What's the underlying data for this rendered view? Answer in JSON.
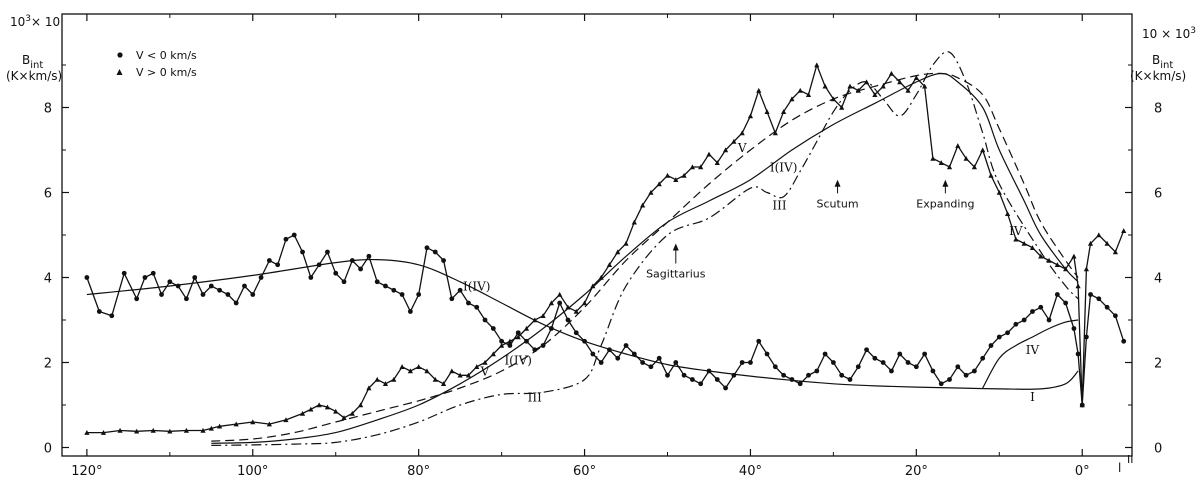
{
  "chart_data": {
    "type": "line",
    "title": "",
    "xlabel": "l",
    "xlabel_superscript": "II",
    "ylabel_left": {
      "scale": "10",
      "scale_exp": "3",
      "scale_suffix": "× 10",
      "quantity": "B",
      "quantity_sub": "int",
      "unit": "(K×km/s)"
    },
    "ylabel_right": {
      "scale": "10 × 10",
      "scale_exp": "3",
      "quantity": "B",
      "quantity_sub": "int",
      "unit": "(K×km/s)"
    },
    "xlim": [
      123,
      -6
    ],
    "ylim": [
      -0.2,
      10.2
    ],
    "x_ticks": [
      120,
      100,
      80,
      60,
      40,
      20,
      0
    ],
    "x_tick_labels": [
      "120°",
      "100°",
      "80°",
      "60°",
      "40°",
      "20°",
      "0°"
    ],
    "y_ticks": [
      0,
      2,
      4,
      6,
      8
    ],
    "y_tick_labels": [
      "0",
      "2",
      "4",
      "6",
      "8"
    ],
    "legend": [
      {
        "marker": "circle",
        "label": "V < 0  km/s"
      },
      {
        "marker": "triangle",
        "label": "V > 0  km/s"
      }
    ],
    "legend_position": "top-left",
    "series": [
      {
        "marker": "circle",
        "style": "solid-with-markers",
        "x": [
          120,
          118.5,
          117,
          115.5,
          114,
          113,
          112,
          111,
          110,
          109,
          108,
          107,
          106,
          105,
          104,
          103,
          102,
          101,
          100,
          99,
          98,
          97,
          96,
          95,
          94,
          93,
          92,
          91,
          90,
          89,
          88,
          87,
          86,
          85,
          84,
          83,
          82,
          81,
          80,
          79,
          78,
          77,
          76,
          75,
          74,
          73,
          72,
          71,
          70,
          69,
          68,
          67,
          66,
          65,
          64,
          63,
          62,
          61,
          60,
          59,
          58,
          57,
          56,
          55,
          54,
          53,
          52,
          51,
          50,
          49,
          48,
          47,
          46,
          45,
          44,
          43,
          42,
          41,
          40,
          39,
          38,
          37,
          36,
          35,
          34,
          33,
          32,
          31,
          30,
          29,
          28,
          27,
          26,
          25,
          24,
          23,
          22,
          21,
          20,
          19,
          18,
          17,
          16,
          15,
          14,
          13,
          12,
          11,
          10,
          9,
          8,
          7,
          6,
          5,
          4,
          3,
          2,
          1,
          0.5,
          0,
          -0.5,
          -1,
          -2,
          -3,
          -4,
          -5
        ],
        "y": [
          4.0,
          3.2,
          3.1,
          4.1,
          3.5,
          4.0,
          4.1,
          3.6,
          3.9,
          3.8,
          3.5,
          4.0,
          3.6,
          3.8,
          3.7,
          3.6,
          3.4,
          3.8,
          3.6,
          4.0,
          4.4,
          4.3,
          4.9,
          5.0,
          4.6,
          4.0,
          4.3,
          4.6,
          4.1,
          3.9,
          4.4,
          4.2,
          4.5,
          3.9,
          3.8,
          3.7,
          3.6,
          3.2,
          3.6,
          4.7,
          4.6,
          4.4,
          3.5,
          3.7,
          3.4,
          3.3,
          3.0,
          2.8,
          2.5,
          2.4,
          2.7,
          2.5,
          2.3,
          2.4,
          2.8,
          3.4,
          3.0,
          2.7,
          2.5,
          2.2,
          2.0,
          2.3,
          2.1,
          2.4,
          2.2,
          2.0,
          1.9,
          2.1,
          1.7,
          2.0,
          1.7,
          1.6,
          1.5,
          1.8,
          1.6,
          1.4,
          1.7,
          2.0,
          2.0,
          2.5,
          2.2,
          1.9,
          1.7,
          1.6,
          1.5,
          1.7,
          1.8,
          2.2,
          2.0,
          1.7,
          1.6,
          1.9,
          2.3,
          2.1,
          2.0,
          1.8,
          2.2,
          2.0,
          1.9,
          2.2,
          1.8,
          1.5,
          1.6,
          1.9,
          1.7,
          1.8,
          2.1,
          2.4,
          2.6,
          2.7,
          2.9,
          3.0,
          3.2,
          3.3,
          3.0,
          3.6,
          3.4,
          2.8,
          2.2,
          1.0,
          2.6,
          3.6,
          3.5,
          3.3,
          3.1,
          2.5
        ]
      },
      {
        "marker": "triangle",
        "style": "solid-with-markers",
        "x": [
          120,
          118,
          116,
          114,
          112,
          110,
          108,
          106,
          105,
          104,
          102,
          100,
          98,
          96,
          94,
          93,
          92,
          91,
          90,
          89,
          88,
          87,
          86,
          85,
          84,
          83,
          82,
          81,
          80,
          79,
          78,
          77,
          76,
          75,
          74,
          73,
          72,
          71,
          70,
          69,
          68,
          67,
          66,
          65,
          64,
          63,
          62,
          61,
          60,
          59,
          58,
          57,
          56,
          55,
          54,
          53,
          52,
          51,
          50,
          49,
          48,
          47,
          46,
          45,
          44,
          43,
          42,
          41,
          40,
          39,
          38,
          37,
          36,
          35,
          34,
          33,
          32,
          31,
          30,
          29,
          28,
          27,
          26,
          25,
          24,
          23,
          22,
          21,
          20,
          19,
          18,
          17,
          16,
          15,
          14,
          13,
          12,
          11,
          10,
          9,
          8,
          7,
          6,
          5,
          4,
          3,
          2,
          1,
          0.5,
          0,
          -0.5,
          -1,
          -2,
          -3,
          -4,
          -5
        ],
        "y": [
          0.35,
          0.35,
          0.4,
          0.38,
          0.4,
          0.38,
          0.4,
          0.4,
          0.45,
          0.5,
          0.55,
          0.6,
          0.55,
          0.65,
          0.8,
          0.9,
          1.0,
          0.95,
          0.85,
          0.7,
          0.8,
          1.0,
          1.4,
          1.6,
          1.5,
          1.6,
          1.9,
          1.8,
          1.9,
          1.8,
          1.6,
          1.5,
          1.8,
          1.7,
          1.7,
          1.9,
          2.0,
          2.2,
          2.4,
          2.5,
          2.6,
          2.8,
          3.0,
          3.1,
          3.4,
          3.6,
          3.3,
          3.2,
          3.4,
          3.8,
          4.0,
          4.3,
          4.6,
          4.8,
          5.3,
          5.7,
          6.0,
          6.2,
          6.4,
          6.3,
          6.4,
          6.6,
          6.6,
          6.9,
          6.7,
          7.0,
          7.2,
          7.4,
          7.8,
          8.4,
          7.9,
          7.4,
          7.9,
          8.2,
          8.4,
          8.3,
          9.0,
          8.5,
          8.2,
          8.0,
          8.5,
          8.4,
          8.6,
          8.3,
          8.5,
          8.8,
          8.6,
          8.4,
          8.7,
          8.5,
          6.8,
          6.7,
          6.6,
          7.1,
          6.8,
          6.6,
          7.0,
          6.4,
          6.0,
          5.5,
          4.9,
          4.8,
          4.7,
          4.5,
          4.4,
          4.3,
          4.2,
          4.5,
          3.8,
          1.0,
          4.2,
          4.8,
          5.0,
          4.8,
          4.6,
          5.1
        ]
      },
      {
        "name": "I",
        "style": "solid",
        "x": [
          120,
          110,
          100,
          90,
          85,
          80,
          75,
          70,
          65,
          60,
          55,
          50,
          45,
          40,
          35,
          30,
          25,
          20,
          15,
          10,
          5,
          2,
          0.5
        ],
        "y": [
          3.6,
          3.8,
          4.05,
          4.35,
          4.42,
          4.3,
          3.9,
          3.4,
          2.9,
          2.5,
          2.2,
          1.95,
          1.8,
          1.68,
          1.58,
          1.5,
          1.45,
          1.42,
          1.4,
          1.38,
          1.38,
          1.5,
          1.8
        ]
      },
      {
        "name": "I(IV)",
        "style": "solid",
        "x": [
          105,
          100,
          95,
          90,
          85,
          80,
          75,
          70,
          65,
          60,
          55,
          50,
          45,
          40,
          35,
          30,
          25,
          20,
          17,
          15,
          12,
          10,
          7,
          5,
          2,
          0.5
        ],
        "y": [
          0.1,
          0.12,
          0.2,
          0.35,
          0.65,
          1.0,
          1.5,
          2.1,
          2.8,
          3.6,
          4.5,
          5.3,
          5.8,
          6.3,
          7.0,
          7.6,
          8.1,
          8.6,
          8.8,
          8.6,
          8.0,
          7.0,
          5.8,
          5.0,
          4.2,
          3.9
        ]
      },
      {
        "name": "III",
        "style": "dash-dot",
        "x": [
          105,
          100,
          95,
          90,
          85,
          80,
          75,
          70,
          65,
          60,
          58,
          55,
          50,
          45,
          40,
          38,
          36,
          34,
          32,
          30,
          28,
          26,
          24,
          22,
          20,
          18,
          16,
          14,
          12,
          10,
          5,
          2,
          0.5
        ],
        "y": [
          0.05,
          0.06,
          0.08,
          0.12,
          0.3,
          0.6,
          1.0,
          1.25,
          1.3,
          1.6,
          2.4,
          3.8,
          5.0,
          5.4,
          6.1,
          6.0,
          5.9,
          6.5,
          7.2,
          7.9,
          8.4,
          8.6,
          8.2,
          7.8,
          8.3,
          9.0,
          9.3,
          8.6,
          7.4,
          6.2,
          4.6,
          3.8,
          3.5
        ]
      },
      {
        "name": "IV",
        "style": "solid",
        "x": [
          12,
          10,
          8,
          6,
          4,
          2,
          0.5
        ],
        "y": [
          1.4,
          2.1,
          2.4,
          2.6,
          2.8,
          2.95,
          3.0
        ]
      },
      {
        "name": "V",
        "style": "dashed",
        "x": [
          105,
          100,
          95,
          90,
          85,
          80,
          75,
          70,
          65,
          60,
          55,
          50,
          45,
          40,
          35,
          30,
          25,
          20,
          17,
          15,
          12,
          10,
          7,
          5,
          2,
          0.5
        ],
        "y": [
          0.15,
          0.2,
          0.35,
          0.6,
          0.85,
          1.1,
          1.4,
          1.8,
          2.4,
          3.3,
          4.4,
          5.3,
          6.2,
          7.0,
          7.7,
          8.2,
          8.5,
          8.75,
          8.8,
          8.7,
          8.3,
          7.5,
          6.2,
          5.3,
          4.4,
          4.0
        ]
      }
    ],
    "curve_labels": [
      {
        "text": "I(IV)",
        "x": 73,
        "y": 3.7
      },
      {
        "text": "I(IV)",
        "x": 68,
        "y": 1.95
      },
      {
        "text": "V",
        "x": 72,
        "y": 1.7
      },
      {
        "text": "III",
        "x": 66,
        "y": 1.08
      },
      {
        "text": "V",
        "x": 41,
        "y": 6.95
      },
      {
        "text": "I(IV)",
        "x": 36,
        "y": 6.5
      },
      {
        "text": "III",
        "x": 36.5,
        "y": 5.6
      },
      {
        "text": "IV",
        "x": 8,
        "y": 5.0
      },
      {
        "text": "IV",
        "x": 6,
        "y": 2.2
      },
      {
        "text": "I",
        "x": 6,
        "y": 1.1
      }
    ],
    "annotations": [
      {
        "text": "Sagittarius",
        "x": 49,
        "y": 4.0,
        "arrow_to": 4.8
      },
      {
        "text": "Scutum",
        "x": 29.5,
        "y": 5.65,
        "arrow_to": 6.3
      },
      {
        "text": "Expanding",
        "x": 16.5,
        "y": 5.65,
        "arrow_to": 6.3
      }
    ]
  }
}
